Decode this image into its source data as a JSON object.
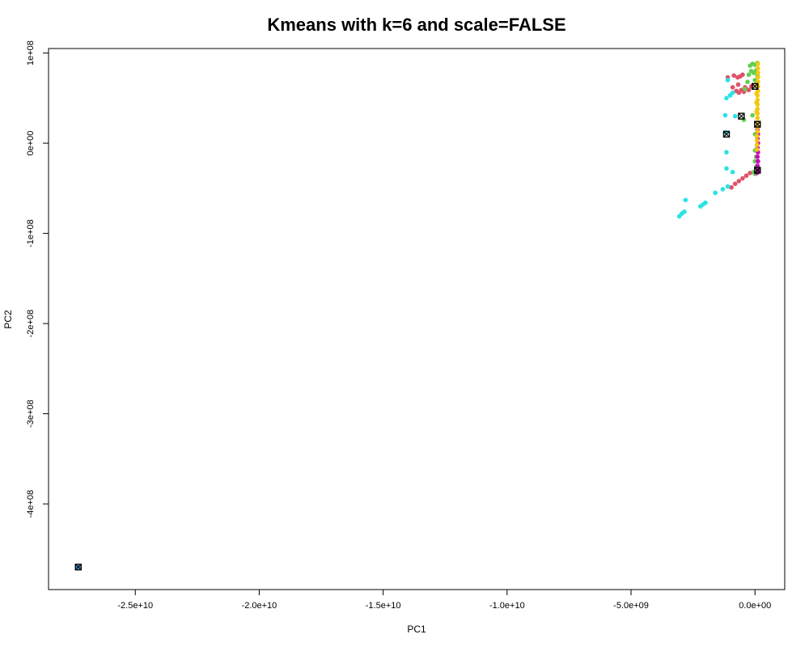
{
  "chart_data": {
    "type": "scatter",
    "title": "Kmeans with k=6 and scale=FALSE",
    "xlabel": "PC1",
    "ylabel": "PC2",
    "xlim": [
      -28500000000.0,
      1200000000.0
    ],
    "ylim": [
      -495000000.0,
      105000000.0
    ],
    "grid": false,
    "legend": "none",
    "x_ticks": [
      {
        "value": -25000000000.0,
        "label": "-2.5e+10"
      },
      {
        "value": -20000000000.0,
        "label": "-2.0e+10"
      },
      {
        "value": -15000000000.0,
        "label": "-1.5e+10"
      },
      {
        "value": -10000000000.0,
        "label": "-1.0e+10"
      },
      {
        "value": -5000000000.0,
        "label": "-5.0e+09"
      },
      {
        "value": 0,
        "label": "0.0e+00"
      }
    ],
    "y_ticks": [
      {
        "value": 100000000.0,
        "label": "1e+08"
      },
      {
        "value": 0,
        "label": "0e+00"
      },
      {
        "value": -100000000.0,
        "label": "-1e+08"
      },
      {
        "value": -200000000.0,
        "label": "-2e+08"
      },
      {
        "value": -300000000.0,
        "label": "-3e+08"
      },
      {
        "value": -400000000.0,
        "label": "-4e+08"
      }
    ],
    "series": [
      {
        "color": "#DF536B",
        "points": [
          [
            -1100000000.0,
            73000000.0
          ],
          [
            -850000000.0,
            75000000.0
          ],
          [
            -700000000.0,
            73000000.0
          ],
          [
            -600000000.0,
            74000000.0
          ],
          [
            -500000000.0,
            76000000.0
          ],
          [
            -900000000.0,
            62000000.0
          ],
          [
            -750000000.0,
            58000000.0
          ],
          [
            -650000000.0,
            56000000.0
          ],
          [
            -550000000.0,
            59000000.0
          ],
          [
            -450000000.0,
            57000000.0
          ],
          [
            -350000000.0,
            60000000.0
          ],
          [
            -680000000.0,
            65000000.0
          ],
          [
            -400000000.0,
            62000000.0
          ],
          [
            -250000000.0,
            59000000.0
          ],
          [
            -150000000.0,
            63000000.0
          ],
          [
            -950000000.0,
            -49000000.0
          ],
          [
            -800000000.0,
            -45000000.0
          ],
          [
            -650000000.0,
            -42000000.0
          ],
          [
            -500000000.0,
            -39000000.0
          ],
          [
            -350000000.0,
            -36000000.0
          ],
          [
            -200000000.0,
            -33000000.0
          ]
        ]
      },
      {
        "color": "#61D04F",
        "points": [
          [
            -200000000.0,
            86000000.0
          ],
          [
            -100000000.0,
            88000000.0
          ],
          [
            0.0,
            87000000.0
          ],
          [
            100000000.0,
            89000000.0
          ],
          [
            -150000000.0,
            80000000.0
          ],
          [
            -50000000.0,
            78000000.0
          ],
          [
            50000000.0,
            81000000.0
          ],
          [
            100000000.0,
            75000000.0
          ],
          [
            -250000000.0,
            76000000.0
          ],
          [
            -300000000.0,
            68000000.0
          ],
          [
            0.0,
            70000000.0
          ],
          [
            100000000.0,
            68000000.0
          ],
          [
            -400000000.0,
            60000000.0
          ],
          [
            -100000000.0,
            31000000.0
          ],
          [
            -450000000.0,
            26000000.0
          ],
          [
            0.0,
            10000000.0
          ],
          [
            0.0,
            -8000000.0
          ],
          [
            50000000.0,
            -15000000.0
          ],
          [
            0.0,
            -20000000.0
          ],
          [
            50000000.0,
            -26000000.0
          ],
          [
            100000000.0,
            -30000000.0
          ],
          [
            -50000000.0,
            -32000000.0
          ],
          [
            0.0,
            -34000000.0
          ]
        ]
      },
      {
        "color": "#2297E6",
        "points": [
          [
            -27300000000.0,
            -470000000.0
          ]
        ]
      },
      {
        "color": "#28E2E5",
        "points": [
          [
            -1100000000.0,
            70000000.0
          ],
          [
            -1150000000.0,
            50000000.0
          ],
          [
            -1000000000.0,
            53000000.0
          ],
          [
            -900000000.0,
            56000000.0
          ],
          [
            -1200000000.0,
            31000000.0
          ],
          [
            -800000000.0,
            30000000.0
          ],
          [
            -1200000000.0,
            12000000.0
          ],
          [
            -1150000000.0,
            -10000000.0
          ],
          [
            -1150000000.0,
            -28000000.0
          ],
          [
            -900000000.0,
            -32000000.0
          ],
          [
            -1600000000.0,
            -55000000.0
          ],
          [
            -1300000000.0,
            -51000000.0
          ],
          [
            -1100000000.0,
            -48000000.0
          ],
          [
            -2000000000.0,
            -66000000.0
          ],
          [
            -2100000000.0,
            -68000000.0
          ],
          [
            -2200000000.0,
            -70000000.0
          ],
          [
            -2800000000.0,
            -63000000.0
          ],
          [
            -2850000000.0,
            -76000000.0
          ],
          [
            -2950000000.0,
            -78000000.0
          ],
          [
            -3050000000.0,
            -81000000.0
          ]
        ]
      },
      {
        "color": "#CD0BBC",
        "points": [
          [
            100000000.0,
            15000000.0
          ],
          [
            120000000.0,
            10000000.0
          ],
          [
            100000000.0,
            5000000.0
          ],
          [
            120000000.0,
            0.0
          ],
          [
            100000000.0,
            -5000000.0
          ],
          [
            120000000.0,
            -10000000.0
          ],
          [
            100000000.0,
            -15000000.0
          ],
          [
            120000000.0,
            -20000000.0
          ],
          [
            100000000.0,
            -25000000.0
          ],
          [
            120000000.0,
            -30000000.0
          ],
          [
            80000000.0,
            -33000000.0
          ]
        ]
      },
      {
        "color": "#F5C710",
        "points": [
          [
            120000000.0,
            88000000.0
          ],
          [
            120000000.0,
            83000000.0
          ],
          [
            120000000.0,
            78000000.0
          ],
          [
            120000000.0,
            73000000.0
          ],
          [
            120000000.0,
            68000000.0
          ],
          [
            120000000.0,
            63000000.0
          ],
          [
            120000000.0,
            58000000.0
          ],
          [
            100000000.0,
            53000000.0
          ],
          [
            100000000.0,
            48000000.0
          ],
          [
            100000000.0,
            43000000.0
          ],
          [
            100000000.0,
            38000000.0
          ],
          [
            100000000.0,
            33000000.0
          ],
          [
            100000000.0,
            28000000.0
          ],
          [
            100000000.0,
            23000000.0
          ],
          [
            100000000.0,
            18000000.0
          ],
          [
            100000000.0,
            13000000.0
          ],
          [
            80000000.0,
            8000000.0
          ],
          [
            80000000.0,
            3000000.0
          ],
          [
            80000000.0,
            -2000000.0
          ],
          [
            80000000.0,
            -7000000.0
          ],
          [
            60000000.0,
            65000000.0
          ],
          [
            60000000.0,
            55000000.0
          ],
          [
            60000000.0,
            45000000.0
          ],
          [
            60000000.0,
            35000000.0
          ]
        ]
      }
    ],
    "centers": [
      [
        -27300000000.0,
        -470000000.0
      ],
      [
        0.0,
        63000000.0
      ],
      [
        -550000000.0,
        30000000.0
      ],
      [
        -1150000000.0,
        10000000.0
      ],
      [
        100000000.0,
        21000000.0
      ],
      [
        100000000.0,
        -30000000.0
      ]
    ]
  }
}
